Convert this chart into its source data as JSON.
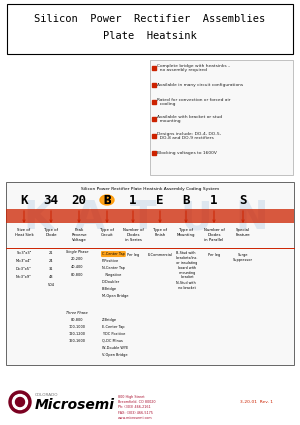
{
  "title_line1": "Silicon  Power  Rectifier  Assemblies",
  "title_line2": "Plate  Heatsink",
  "features": [
    "Complete bridge with heatsinks –\n  no assembly required",
    "Available in many circuit configurations",
    "Rated for convection or forced air\n  cooling",
    "Available with bracket or stud\n  mounting",
    "Designs include: DO-4, DO-5,\n  DO-8 and DO-9 rectifiers",
    "Blocking voltages to 1600V"
  ],
  "coding_title": "Silicon Power Rectifier Plate Heatsink Assembly Coding System",
  "coding_letters": [
    "K",
    "34",
    "20",
    "B",
    "1",
    "E",
    "B",
    "1",
    "S"
  ],
  "coding_labels": [
    "Size of\nHeat Sink",
    "Type of\nDiode",
    "Peak\nReverse\nVoltage",
    "Type of\nCircuit",
    "Number of\nDiodes\nin Series",
    "Type of\nFinish",
    "Type of\nMounting",
    "Number of\nDiodes\nin Parallel",
    "Special\nFeature"
  ],
  "col1_heat_sink": [
    "S=3\"x3\"",
    "M=3\"x4\"",
    "D=3\"x5\"",
    "N=3\"x9\""
  ],
  "col2_diode": [
    "21",
    "24",
    "31",
    "43",
    "504"
  ],
  "col3_sp_label": "Single Phase",
  "col3_voltage_sp": [
    "20-200",
    "40-400",
    "80-800"
  ],
  "col3_circuit_sp": [
    "C-Center Tap",
    "P-Positive",
    "N-Center Tap",
    "   Negative",
    "D-Doubler",
    "B-Bridge",
    "M-Open Bridge"
  ],
  "col3_tp_label": "Three Phase",
  "col3_voltage_3p": [
    "80-800",
    "100-1000",
    "120-1200",
    "160-1600"
  ],
  "col3_circuit_3p": [
    "Z-Bridge",
    "E-Center Tap",
    "Y-DC Positive",
    "Q-DC Minus",
    "W-Double WYE",
    "V-Open Bridge"
  ],
  "col5_series": "Per leg",
  "col6_finish": "E-Commercial",
  "col7_mounting": [
    "B-Stud with\n  brackets/ins.\n  or insulating\n  board with\n  mounting\n  bracket",
    "N-Stud with\n  no bracket"
  ],
  "col8_parallel": "Per leg",
  "col9_feature": "Surge\nSuppressor",
  "bg_color": "#ffffff",
  "title_border_color": "#000000",
  "red_color": "#cc2200",
  "highlight_color": "#ff9900",
  "watermark_color": "#c8d8e8",
  "microsemi_dark_red": "#7a0020",
  "microsemi_red": "#aa1030",
  "doc_number": "3-20-01  Rev. 1",
  "address": "800 High Street\nBreomfield, CO 80020\nPh: (303) 466-2161\nFAX: (303) 466-5175\nwww.microsemi.com"
}
